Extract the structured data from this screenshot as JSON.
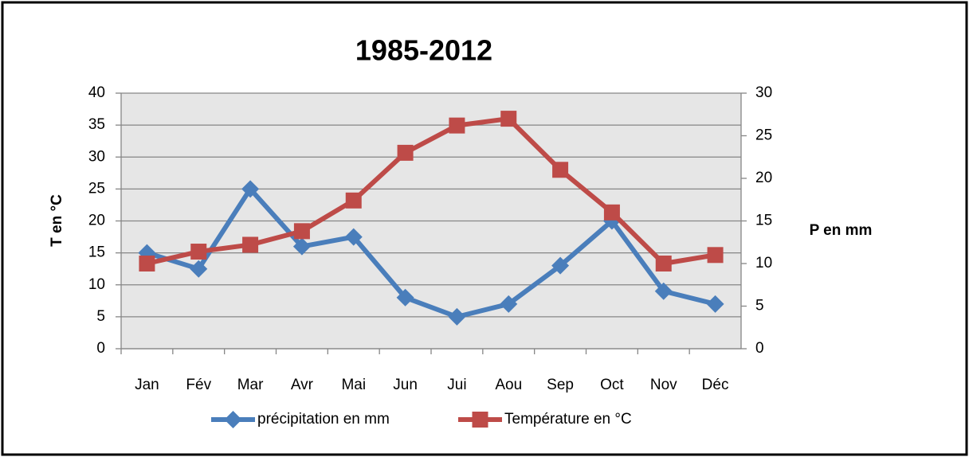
{
  "chart_data": {
    "type": "line",
    "title": "1985-2012",
    "ylabel": "T en °C",
    "y2label": "P en mm",
    "categories": [
      "Jan",
      "Fév",
      "Mar",
      "Avr",
      "Mai",
      "Jun",
      "Jui",
      "Aou",
      "Sep",
      "Oct",
      "Nov",
      "Déc"
    ],
    "series": [
      {
        "name": "précipitation en mm",
        "color": "#4a7ebb",
        "marker": "diamond",
        "axis": "y",
        "values": [
          15,
          12.5,
          25,
          16,
          17.5,
          8,
          5,
          7,
          13,
          20,
          9,
          7
        ]
      },
      {
        "name": "Température en °C",
        "color": "#be4b48",
        "marker": "square",
        "axis": "y2",
        "values": [
          10,
          11.4,
          12.2,
          13.8,
          17.4,
          23,
          26.2,
          27,
          21,
          16,
          10,
          11
        ]
      }
    ],
    "ylim": [
      0,
      40
    ],
    "yticks": [
      0,
      5,
      10,
      15,
      20,
      25,
      30,
      35,
      40
    ],
    "y2lim": [
      0,
      30
    ],
    "y2ticks": [
      0,
      5,
      10,
      15,
      20,
      25,
      30
    ],
    "grid": true,
    "legend": "bottom"
  }
}
